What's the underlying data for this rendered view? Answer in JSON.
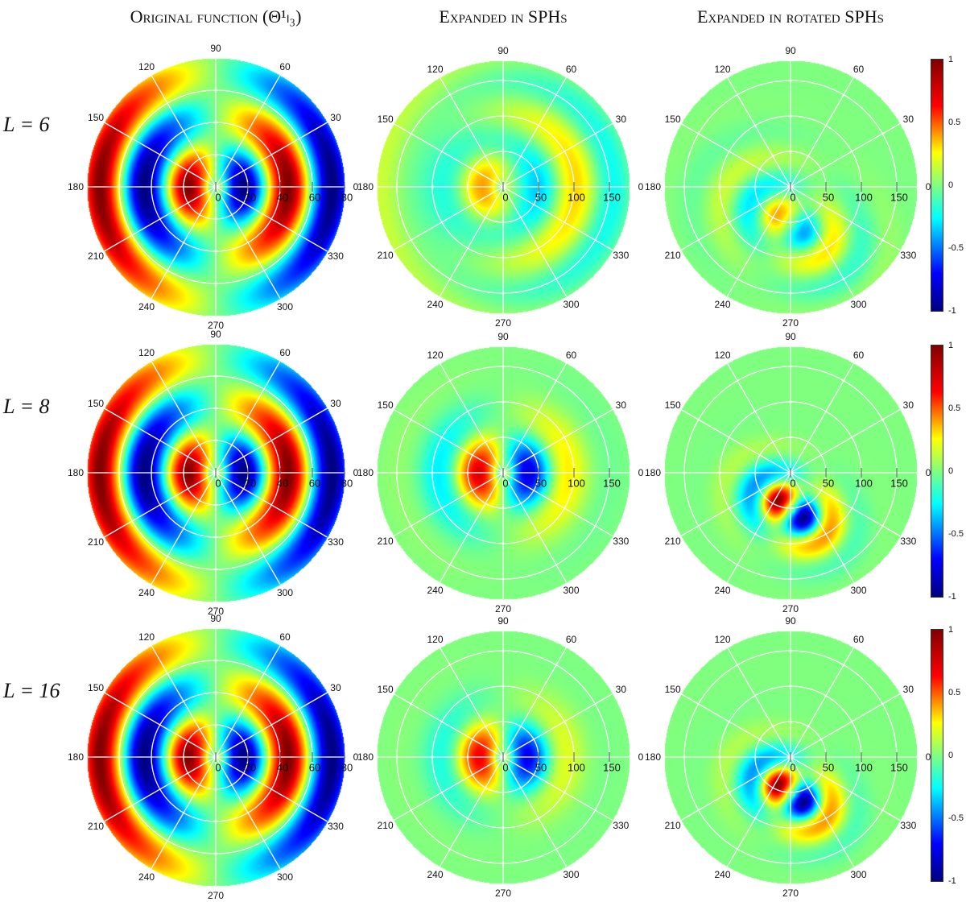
{
  "chart_data": {
    "type": "heatmap",
    "projection": "polar",
    "column_titles": [
      "Original function (Θ¹ₗ₃)",
      "Expanded in SPHs",
      "Expanded in rotated SPHs"
    ],
    "row_labels": [
      "L = 6",
      "L = 8",
      "L = 16"
    ],
    "angular_ticks": [
      "0",
      "30",
      "60",
      "90",
      "120",
      "150",
      "180",
      "210",
      "240",
      "270",
      "300",
      "330"
    ],
    "radial_ticks": [
      [
        "0",
        "20",
        "40",
        "60",
        "80"
      ],
      [
        "0",
        "50",
        "100",
        "150"
      ],
      [
        "0",
        "50",
        "100",
        "150"
      ]
    ],
    "radial_max": [
      80,
      178,
      178
    ],
    "colorbar": {
      "colormap": "jet",
      "range": [
        -1,
        1
      ],
      "ticks": [
        "1",
        "0.5",
        "0",
        "-0.5",
        "-1"
      ]
    },
    "panel_amplitude": [
      [
        1.0,
        0.45,
        0.4
      ],
      [
        1.0,
        1.0,
        1.0
      ],
      [
        1.0,
        1.0,
        1.0
      ]
    ]
  }
}
